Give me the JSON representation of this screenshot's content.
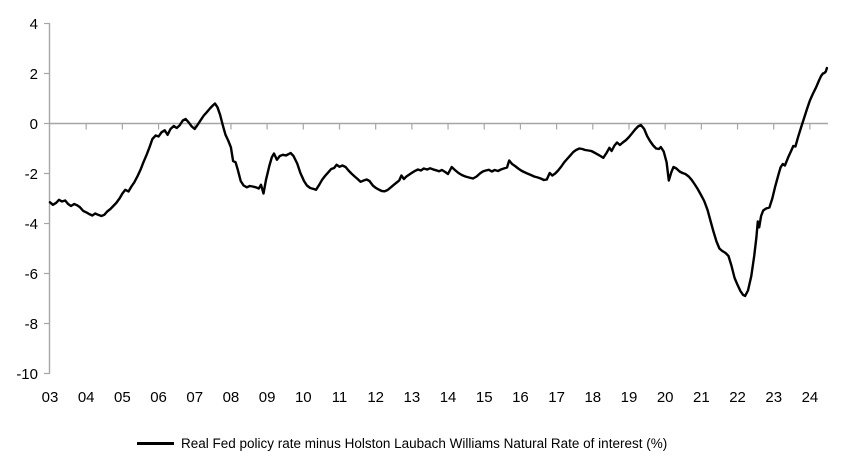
{
  "legend": {
    "label": "Real Fed policy rate minus Holston Laubach Williams Natural Rate of interest (%)"
  },
  "chart_data": {
    "type": "line",
    "title": "",
    "xlabel": "",
    "ylabel": "",
    "xlim": [
      2003,
      2024.5
    ],
    "ylim": [
      -10,
      4
    ],
    "y_ticks": [
      4,
      2,
      0,
      -2,
      -4,
      -6,
      -8,
      -10
    ],
    "x_tick_years": [
      2003,
      2004,
      2005,
      2006,
      2007,
      2008,
      2009,
      2010,
      2011,
      2012,
      2013,
      2014,
      2015,
      2016,
      2017,
      2018,
      2019,
      2020,
      2021,
      2022,
      2023,
      2024
    ],
    "x_tick_labels": [
      "03",
      "04",
      "05",
      "06",
      "07",
      "08",
      "09",
      "10",
      "11",
      "12",
      "13",
      "14",
      "15",
      "16",
      "17",
      "18",
      "19",
      "20",
      "21",
      "22",
      "23",
      "24"
    ],
    "grid": "zero-line-only",
    "legend_position": "bottom-center",
    "colors": {
      "line": "#000000",
      "axis": "#a6a6a6",
      "text": "#000000",
      "background": "#ffffff"
    },
    "series": [
      {
        "name": "Real Fed policy rate minus Holston Laubach Williams Natural Rate of interest (%)",
        "points": [
          [
            2003.0,
            -3.15
          ],
          [
            2003.08,
            -3.25
          ],
          [
            2003.17,
            -3.17
          ],
          [
            2003.25,
            -3.05
          ],
          [
            2003.33,
            -3.12
          ],
          [
            2003.42,
            -3.08
          ],
          [
            2003.5,
            -3.22
          ],
          [
            2003.58,
            -3.3
          ],
          [
            2003.67,
            -3.22
          ],
          [
            2003.75,
            -3.27
          ],
          [
            2003.83,
            -3.35
          ],
          [
            2003.92,
            -3.5
          ],
          [
            2004.0,
            -3.55
          ],
          [
            2004.08,
            -3.62
          ],
          [
            2004.17,
            -3.68
          ],
          [
            2004.25,
            -3.6
          ],
          [
            2004.33,
            -3.65
          ],
          [
            2004.42,
            -3.7
          ],
          [
            2004.5,
            -3.65
          ],
          [
            2004.58,
            -3.52
          ],
          [
            2004.67,
            -3.42
          ],
          [
            2004.75,
            -3.3
          ],
          [
            2004.83,
            -3.18
          ],
          [
            2004.92,
            -3.0
          ],
          [
            2005.0,
            -2.8
          ],
          [
            2005.08,
            -2.65
          ],
          [
            2005.17,
            -2.72
          ],
          [
            2005.25,
            -2.52
          ],
          [
            2005.33,
            -2.35
          ],
          [
            2005.42,
            -2.1
          ],
          [
            2005.5,
            -1.85
          ],
          [
            2005.58,
            -1.55
          ],
          [
            2005.67,
            -1.25
          ],
          [
            2005.75,
            -0.95
          ],
          [
            2005.83,
            -0.62
          ],
          [
            2005.92,
            -0.48
          ],
          [
            2006.0,
            -0.52
          ],
          [
            2006.08,
            -0.35
          ],
          [
            2006.17,
            -0.27
          ],
          [
            2006.25,
            -0.45
          ],
          [
            2006.33,
            -0.22
          ],
          [
            2006.42,
            -0.1
          ],
          [
            2006.5,
            -0.18
          ],
          [
            2006.58,
            -0.08
          ],
          [
            2006.67,
            0.12
          ],
          [
            2006.75,
            0.18
          ],
          [
            2006.83,
            0.05
          ],
          [
            2006.92,
            -0.12
          ],
          [
            2007.0,
            -0.22
          ],
          [
            2007.08,
            -0.05
          ],
          [
            2007.17,
            0.15
          ],
          [
            2007.25,
            0.32
          ],
          [
            2007.33,
            0.45
          ],
          [
            2007.42,
            0.6
          ],
          [
            2007.5,
            0.72
          ],
          [
            2007.56,
            0.8
          ],
          [
            2007.63,
            0.65
          ],
          [
            2007.7,
            0.35
          ],
          [
            2007.78,
            -0.1
          ],
          [
            2007.85,
            -0.45
          ],
          [
            2007.93,
            -0.7
          ],
          [
            2008.0,
            -0.95
          ],
          [
            2008.06,
            -1.5
          ],
          [
            2008.13,
            -1.55
          ],
          [
            2008.19,
            -1.85
          ],
          [
            2008.27,
            -2.3
          ],
          [
            2008.35,
            -2.48
          ],
          [
            2008.44,
            -2.55
          ],
          [
            2008.52,
            -2.5
          ],
          [
            2008.6,
            -2.52
          ],
          [
            2008.69,
            -2.55
          ],
          [
            2008.77,
            -2.6
          ],
          [
            2008.83,
            -2.45
          ],
          [
            2008.9,
            -2.8
          ],
          [
            2008.97,
            -2.25
          ],
          [
            2009.06,
            -1.7
          ],
          [
            2009.13,
            -1.35
          ],
          [
            2009.19,
            -1.2
          ],
          [
            2009.27,
            -1.45
          ],
          [
            2009.35,
            -1.3
          ],
          [
            2009.44,
            -1.25
          ],
          [
            2009.52,
            -1.28
          ],
          [
            2009.6,
            -1.22
          ],
          [
            2009.65,
            -1.18
          ],
          [
            2009.73,
            -1.3
          ],
          [
            2009.83,
            -1.6
          ],
          [
            2009.92,
            -1.98
          ],
          [
            2010.02,
            -2.3
          ],
          [
            2010.1,
            -2.48
          ],
          [
            2010.19,
            -2.58
          ],
          [
            2010.29,
            -2.62
          ],
          [
            2010.35,
            -2.65
          ],
          [
            2010.44,
            -2.45
          ],
          [
            2010.52,
            -2.25
          ],
          [
            2010.6,
            -2.1
          ],
          [
            2010.69,
            -1.95
          ],
          [
            2010.77,
            -1.82
          ],
          [
            2010.85,
            -1.78
          ],
          [
            2010.92,
            -1.65
          ],
          [
            2011.0,
            -1.73
          ],
          [
            2011.08,
            -1.68
          ],
          [
            2011.17,
            -1.74
          ],
          [
            2011.25,
            -1.88
          ],
          [
            2011.33,
            -2.0
          ],
          [
            2011.42,
            -2.12
          ],
          [
            2011.5,
            -2.22
          ],
          [
            2011.58,
            -2.33
          ],
          [
            2011.67,
            -2.28
          ],
          [
            2011.75,
            -2.24
          ],
          [
            2011.83,
            -2.3
          ],
          [
            2011.92,
            -2.48
          ],
          [
            2012.0,
            -2.57
          ],
          [
            2012.08,
            -2.64
          ],
          [
            2012.17,
            -2.7
          ],
          [
            2012.25,
            -2.71
          ],
          [
            2012.33,
            -2.66
          ],
          [
            2012.42,
            -2.55
          ],
          [
            2012.5,
            -2.45
          ],
          [
            2012.58,
            -2.36
          ],
          [
            2012.65,
            -2.28
          ],
          [
            2012.71,
            -2.08
          ],
          [
            2012.78,
            -2.22
          ],
          [
            2012.85,
            -2.12
          ],
          [
            2012.92,
            -2.05
          ],
          [
            2013.0,
            -1.97
          ],
          [
            2013.08,
            -1.9
          ],
          [
            2013.17,
            -1.84
          ],
          [
            2013.25,
            -1.88
          ],
          [
            2013.33,
            -1.8
          ],
          [
            2013.42,
            -1.84
          ],
          [
            2013.5,
            -1.79
          ],
          [
            2013.58,
            -1.83
          ],
          [
            2013.67,
            -1.87
          ],
          [
            2013.75,
            -1.91
          ],
          [
            2013.83,
            -1.86
          ],
          [
            2013.92,
            -1.94
          ],
          [
            2014.0,
            -2.02
          ],
          [
            2014.1,
            -1.74
          ],
          [
            2014.19,
            -1.86
          ],
          [
            2014.29,
            -1.98
          ],
          [
            2014.38,
            -2.06
          ],
          [
            2014.48,
            -2.12
          ],
          [
            2014.58,
            -2.16
          ],
          [
            2014.69,
            -2.2
          ],
          [
            2014.79,
            -2.12
          ],
          [
            2014.88,
            -2.0
          ],
          [
            2014.96,
            -1.92
          ],
          [
            2015.04,
            -1.88
          ],
          [
            2015.13,
            -1.85
          ],
          [
            2015.21,
            -1.92
          ],
          [
            2015.29,
            -1.86
          ],
          [
            2015.38,
            -1.9
          ],
          [
            2015.46,
            -1.84
          ],
          [
            2015.54,
            -1.8
          ],
          [
            2015.63,
            -1.76
          ],
          [
            2015.69,
            -1.48
          ],
          [
            2015.77,
            -1.62
          ],
          [
            2015.85,
            -1.7
          ],
          [
            2015.94,
            -1.8
          ],
          [
            2016.02,
            -1.88
          ],
          [
            2016.1,
            -1.94
          ],
          [
            2016.19,
            -2.0
          ],
          [
            2016.29,
            -2.06
          ],
          [
            2016.38,
            -2.12
          ],
          [
            2016.48,
            -2.16
          ],
          [
            2016.56,
            -2.2
          ],
          [
            2016.65,
            -2.26
          ],
          [
            2016.73,
            -2.24
          ],
          [
            2016.81,
            -1.98
          ],
          [
            2016.88,
            -2.08
          ],
          [
            2016.96,
            -2.0
          ],
          [
            2017.04,
            -1.88
          ],
          [
            2017.13,
            -1.72
          ],
          [
            2017.21,
            -1.55
          ],
          [
            2017.29,
            -1.42
          ],
          [
            2017.38,
            -1.27
          ],
          [
            2017.46,
            -1.14
          ],
          [
            2017.54,
            -1.06
          ],
          [
            2017.63,
            -1.0
          ],
          [
            2017.71,
            -1.02
          ],
          [
            2017.79,
            -1.06
          ],
          [
            2017.88,
            -1.08
          ],
          [
            2017.96,
            -1.1
          ],
          [
            2018.04,
            -1.16
          ],
          [
            2018.13,
            -1.23
          ],
          [
            2018.21,
            -1.3
          ],
          [
            2018.29,
            -1.37
          ],
          [
            2018.38,
            -1.18
          ],
          [
            2018.46,
            -0.97
          ],
          [
            2018.52,
            -1.1
          ],
          [
            2018.6,
            -0.88
          ],
          [
            2018.67,
            -0.76
          ],
          [
            2018.75,
            -0.86
          ],
          [
            2018.83,
            -0.76
          ],
          [
            2018.92,
            -0.66
          ],
          [
            2019.0,
            -0.54
          ],
          [
            2019.08,
            -0.4
          ],
          [
            2019.17,
            -0.24
          ],
          [
            2019.25,
            -0.12
          ],
          [
            2019.33,
            -0.06
          ],
          [
            2019.42,
            -0.22
          ],
          [
            2019.5,
            -0.5
          ],
          [
            2019.58,
            -0.7
          ],
          [
            2019.67,
            -0.88
          ],
          [
            2019.75,
            -1.0
          ],
          [
            2019.83,
            -1.02
          ],
          [
            2019.88,
            -0.94
          ],
          [
            2019.96,
            -1.12
          ],
          [
            2020.04,
            -1.55
          ],
          [
            2020.1,
            -2.28
          ],
          [
            2020.17,
            -1.95
          ],
          [
            2020.23,
            -1.74
          ],
          [
            2020.31,
            -1.8
          ],
          [
            2020.4,
            -1.92
          ],
          [
            2020.48,
            -1.98
          ],
          [
            2020.56,
            -2.02
          ],
          [
            2020.65,
            -2.12
          ],
          [
            2020.73,
            -2.25
          ],
          [
            2020.81,
            -2.42
          ],
          [
            2020.9,
            -2.62
          ],
          [
            2021.0,
            -2.88
          ],
          [
            2021.08,
            -3.1
          ],
          [
            2021.17,
            -3.45
          ],
          [
            2021.25,
            -3.88
          ],
          [
            2021.33,
            -4.3
          ],
          [
            2021.42,
            -4.72
          ],
          [
            2021.5,
            -5.0
          ],
          [
            2021.58,
            -5.1
          ],
          [
            2021.67,
            -5.18
          ],
          [
            2021.75,
            -5.3
          ],
          [
            2021.83,
            -5.68
          ],
          [
            2021.92,
            -6.18
          ],
          [
            2022.0,
            -6.45
          ],
          [
            2022.08,
            -6.7
          ],
          [
            2022.15,
            -6.85
          ],
          [
            2022.21,
            -6.9
          ],
          [
            2022.29,
            -6.68
          ],
          [
            2022.38,
            -6.1
          ],
          [
            2022.46,
            -5.3
          ],
          [
            2022.52,
            -4.55
          ],
          [
            2022.56,
            -3.92
          ],
          [
            2022.6,
            -4.15
          ],
          [
            2022.65,
            -3.7
          ],
          [
            2022.71,
            -3.48
          ],
          [
            2022.79,
            -3.4
          ],
          [
            2022.88,
            -3.36
          ],
          [
            2022.96,
            -3.0
          ],
          [
            2023.04,
            -2.52
          ],
          [
            2023.13,
            -2.05
          ],
          [
            2023.19,
            -1.75
          ],
          [
            2023.25,
            -1.62
          ],
          [
            2023.31,
            -1.68
          ],
          [
            2023.4,
            -1.35
          ],
          [
            2023.48,
            -1.1
          ],
          [
            2023.54,
            -0.9
          ],
          [
            2023.6,
            -0.92
          ],
          [
            2023.67,
            -0.55
          ],
          [
            2023.75,
            -0.18
          ],
          [
            2023.83,
            0.18
          ],
          [
            2023.92,
            0.58
          ],
          [
            2024.0,
            0.92
          ],
          [
            2024.08,
            1.18
          ],
          [
            2024.17,
            1.45
          ],
          [
            2024.25,
            1.72
          ],
          [
            2024.31,
            1.9
          ],
          [
            2024.36,
            2.0
          ],
          [
            2024.4,
            2.02
          ],
          [
            2024.44,
            2.08
          ],
          [
            2024.47,
            2.22
          ]
        ]
      }
    ]
  }
}
